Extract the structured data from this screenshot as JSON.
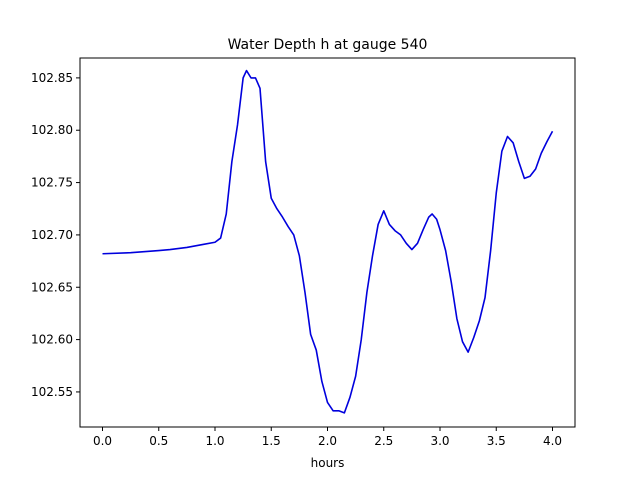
{
  "chart_data": {
    "type": "line",
    "title": "Water Depth h at gauge 540",
    "xlabel": "hours",
    "ylabel": "",
    "xlim": [
      -0.2,
      4.2
    ],
    "ylim": [
      102.5165,
      102.869
    ],
    "x_ticks": [
      0.0,
      0.5,
      1.0,
      1.5,
      2.0,
      2.5,
      3.0,
      3.5,
      4.0
    ],
    "x_tick_labels": [
      "0.0",
      "0.5",
      "1.0",
      "1.5",
      "2.0",
      "2.5",
      "3.0",
      "3.5",
      "4.0"
    ],
    "y_ticks": [
      102.55,
      102.6,
      102.65,
      102.7,
      102.75,
      102.8,
      102.85
    ],
    "y_tick_labels": [
      "102.55",
      "102.60",
      "102.65",
      "102.70",
      "102.75",
      "102.80",
      "102.85"
    ],
    "grid": false,
    "legend": "none",
    "series": [
      {
        "color": "#0000dd",
        "points": [
          [
            0.0,
            102.682
          ],
          [
            0.25,
            102.683
          ],
          [
            0.5,
            102.685
          ],
          [
            0.6,
            102.686
          ],
          [
            0.75,
            102.688
          ],
          [
            0.9,
            102.691
          ],
          [
            1.0,
            102.693
          ],
          [
            1.05,
            102.697
          ],
          [
            1.1,
            102.72
          ],
          [
            1.15,
            102.77
          ],
          [
            1.2,
            102.805
          ],
          [
            1.25,
            102.85
          ],
          [
            1.28,
            102.857
          ],
          [
            1.32,
            102.85
          ],
          [
            1.36,
            102.85
          ],
          [
            1.4,
            102.84
          ],
          [
            1.45,
            102.77
          ],
          [
            1.5,
            102.735
          ],
          [
            1.55,
            102.725
          ],
          [
            1.6,
            102.717
          ],
          [
            1.65,
            102.708
          ],
          [
            1.7,
            102.7
          ],
          [
            1.75,
            102.68
          ],
          [
            1.8,
            102.645
          ],
          [
            1.85,
            102.605
          ],
          [
            1.9,
            102.59
          ],
          [
            1.95,
            102.56
          ],
          [
            2.0,
            102.54
          ],
          [
            2.05,
            102.532
          ],
          [
            2.1,
            102.532
          ],
          [
            2.15,
            102.53
          ],
          [
            2.2,
            102.545
          ],
          [
            2.25,
            102.565
          ],
          [
            2.3,
            102.6
          ],
          [
            2.35,
            102.645
          ],
          [
            2.4,
            102.68
          ],
          [
            2.45,
            102.71
          ],
          [
            2.5,
            102.723
          ],
          [
            2.55,
            102.71
          ],
          [
            2.6,
            102.704
          ],
          [
            2.65,
            102.7
          ],
          [
            2.7,
            102.692
          ],
          [
            2.75,
            102.686
          ],
          [
            2.8,
            102.692
          ],
          [
            2.85,
            102.705
          ],
          [
            2.9,
            102.717
          ],
          [
            2.93,
            102.72
          ],
          [
            2.97,
            102.715
          ],
          [
            3.0,
            102.705
          ],
          [
            3.05,
            102.685
          ],
          [
            3.1,
            102.655
          ],
          [
            3.15,
            102.62
          ],
          [
            3.2,
            102.598
          ],
          [
            3.25,
            102.588
          ],
          [
            3.3,
            102.602
          ],
          [
            3.35,
            102.618
          ],
          [
            3.4,
            102.64
          ],
          [
            3.45,
            102.685
          ],
          [
            3.5,
            102.74
          ],
          [
            3.55,
            102.78
          ],
          [
            3.6,
            102.794
          ],
          [
            3.65,
            102.788
          ],
          [
            3.7,
            102.77
          ],
          [
            3.75,
            102.754
          ],
          [
            3.8,
            102.756
          ],
          [
            3.85,
            102.763
          ],
          [
            3.9,
            102.778
          ],
          [
            3.95,
            102.789
          ],
          [
            4.0,
            102.799
          ]
        ]
      }
    ]
  }
}
